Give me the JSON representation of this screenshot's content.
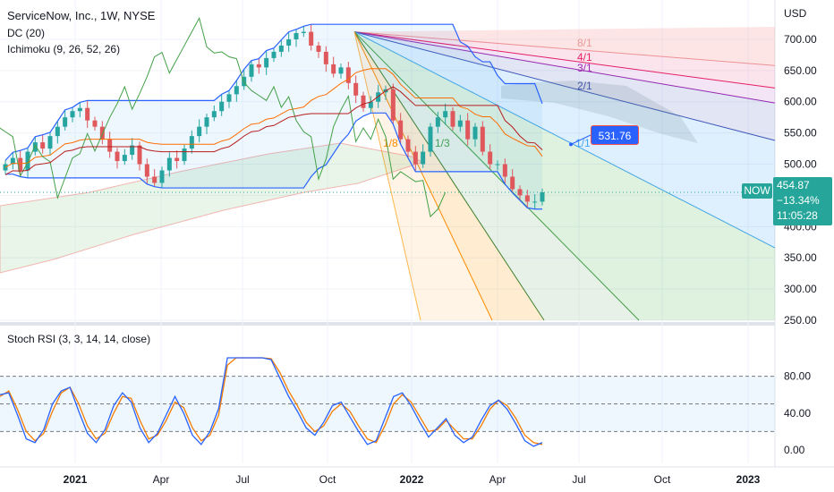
{
  "legend": {
    "title": "ServiceNow, Inc., 1W, NYSE",
    "dc": "DC (20)",
    "ichimoku": "Ichimoku (9, 26, 52, 26)",
    "stoch": "Stoch RSI (3, 3, 14, 14, close)"
  },
  "axis": {
    "currency": "USD",
    "price_ticks": [
      "700.00",
      "650.00",
      "600.00",
      "550.00",
      "500.00",
      "450.00",
      "400.00",
      "350.00",
      "300.00",
      "250.00"
    ],
    "stoch_ticks": [
      "80.00",
      "40.00",
      "0.00"
    ],
    "time_ticks": [
      {
        "label": "2021",
        "bold": true
      },
      {
        "label": "Apr",
        "bold": false
      },
      {
        "label": "Jul",
        "bold": false
      },
      {
        "label": "Oct",
        "bold": false
      },
      {
        "label": "2022",
        "bold": true
      },
      {
        "label": "Apr",
        "bold": false
      },
      {
        "label": "Jul",
        "bold": false
      },
      {
        "label": "Oct",
        "bold": false
      },
      {
        "label": "2023",
        "bold": true
      }
    ]
  },
  "price_tag": {
    "symbol": "NOW",
    "price": "454.87",
    "change": "−13.34%",
    "countdown": "11:05:28",
    "color": "#26a69a"
  },
  "target_label": {
    "value": "531.76",
    "color": "#2962ff"
  },
  "fan_labels": [
    "8/1",
    "4/1",
    "3/1",
    "2/1",
    "1/1",
    "1/8",
    "1/3"
  ],
  "colors": {
    "up": "#26a69a",
    "down": "#ef5350",
    "grid": "#f0f3fa",
    "dc": "#2962ff",
    "k": "#2962ff",
    "d": "#f57c00"
  },
  "chart_data": {
    "type": "candlestick",
    "interval": "1W",
    "y_range": [
      250,
      720
    ],
    "fan_origin_price": 712,
    "close_series": [
      500,
      510,
      490,
      520,
      535,
      525,
      545,
      560,
      575,
      585,
      590,
      570,
      560,
      540,
      520,
      505,
      515,
      530,
      500,
      480,
      470,
      490,
      510,
      505,
      525,
      545,
      560,
      575,
      585,
      600,
      612,
      625,
      640,
      660,
      655,
      670,
      680,
      690,
      700,
      710,
      712,
      690,
      680,
      660,
      645,
      655,
      630,
      610,
      590,
      600,
      615,
      620,
      570,
      540,
      520,
      500,
      520,
      560,
      575,
      585,
      560,
      570,
      540,
      560,
      520,
      500,
      500,
      480,
      460,
      450,
      440,
      440,
      454.87
    ],
    "stoch_rsi": {
      "y_range": [
        0,
        100
      ],
      "levels": [
        80,
        50,
        20
      ],
      "k": [
        60,
        62,
        38,
        12,
        8,
        22,
        50,
        64,
        68,
        42,
        18,
        8,
        22,
        48,
        62,
        52,
        24,
        8,
        18,
        38,
        58,
        40,
        16,
        6,
        20,
        45,
        100,
        100,
        100,
        100,
        100,
        98,
        78,
        58,
        42,
        24,
        16,
        30,
        48,
        52,
        36,
        20,
        6,
        10,
        34,
        58,
        62,
        48,
        30,
        14,
        24,
        34,
        16,
        8,
        14,
        32,
        48,
        54,
        44,
        28,
        10,
        4,
        8
      ],
      "d": [
        58,
        64,
        44,
        20,
        10,
        18,
        42,
        62,
        68,
        50,
        26,
        12,
        18,
        40,
        58,
        56,
        32,
        12,
        16,
        32,
        52,
        46,
        24,
        10,
        16,
        38,
        92,
        100,
        100,
        100,
        100,
        99,
        84,
        64,
        48,
        30,
        20,
        26,
        42,
        50,
        42,
        26,
        12,
        8,
        26,
        50,
        60,
        52,
        36,
        20,
        22,
        32,
        22,
        12,
        12,
        26,
        44,
        54,
        48,
        34,
        16,
        8,
        6
      ]
    }
  }
}
